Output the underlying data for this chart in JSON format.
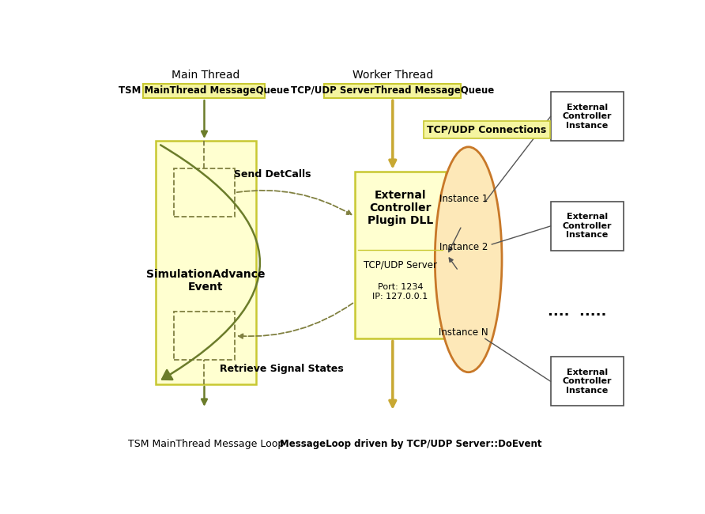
{
  "bg_color": "#ffffff",
  "main_thread_label": "Main Thread",
  "worker_thread_label": "Worker Thread",
  "tsm_queue_label": "TSM MainThread MessageQueue",
  "tcp_queue_label": "TCP/UDP ServerThread MessageQueue",
  "tsm_loop_label": "TSM MainThread Message Loop",
  "messageloop_label": "MessageLoop driven by TCP/UDP Server::DoEvent",
  "sim_box_label": "SimulationAdvance\nEvent",
  "tcp_connections_label": "TCP/UDP Connections",
  "send_detcalls_label": "Send DetCalls",
  "retrieve_signal_label": "Retrieve Signal States",
  "instance1_label": "Instance 1",
  "instance2_label": "Instance 2",
  "instanceN_label": "Instance N",
  "ext_ctrl_instance_label": "External\nController\nInstance",
  "dots_label": "....  .....",
  "olive_green": "#6b7c2a",
  "yellow_fill": "#fffff0",
  "yellow_fill2": "#ffffd0",
  "yellow_border": "#c8c832",
  "yellow_label_fill": "#f5f5a0",
  "yellow_label_border": "#c8c832",
  "orange_fill": "#fde8b8",
  "orange_border": "#d4a040",
  "gold_arrow": "#c8a832",
  "dashed_color": "#808040",
  "box_border": "#505050",
  "ellipse_border": "#c87828",
  "text_color": "#000000",
  "gray_line": "#555555",
  "sep_line": "#c8c832"
}
